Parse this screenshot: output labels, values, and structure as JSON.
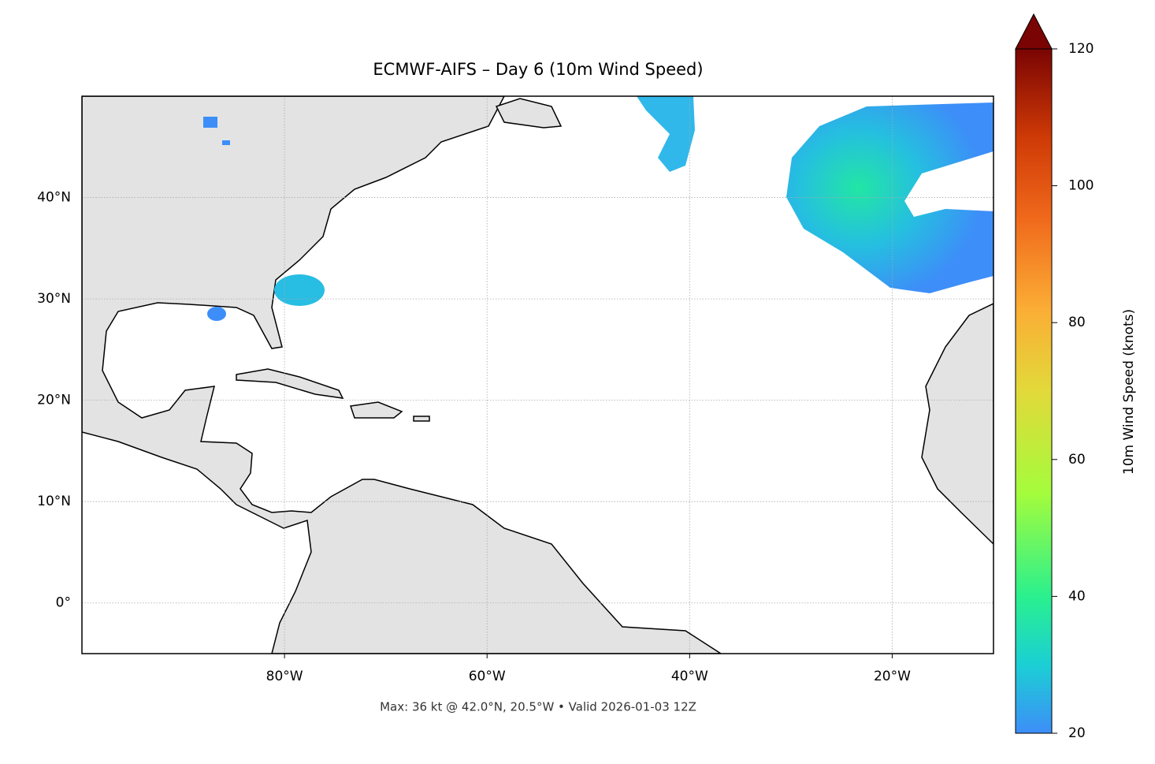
{
  "chart_data": {
    "type": "map",
    "title": "ECMWF-AIFS – Day 6 (10m Wind Speed)",
    "footnote": "Max: 36 kt @ 42.0°N, 20.5°W • Valid 2026-01-03 12Z",
    "xlim": [
      -100,
      -10
    ],
    "ylim": [
      -5,
      50
    ],
    "xticks": [
      {
        "value": -80,
        "label": "80°W"
      },
      {
        "value": -60,
        "label": "60°W"
      },
      {
        "value": -40,
        "label": "40°W"
      },
      {
        "value": -20,
        "label": "20°W"
      }
    ],
    "yticks": [
      {
        "value": 0,
        "label": "0°"
      },
      {
        "value": 10,
        "label": "10°N"
      },
      {
        "value": 20,
        "label": "20°N"
      },
      {
        "value": 30,
        "label": "30°N"
      },
      {
        "value": 40,
        "label": "40°N"
      }
    ],
    "grid": true,
    "colorbar": {
      "label": "10m Wind Speed (knots)",
      "lim": [
        20,
        120
      ],
      "ticks": [
        20,
        40,
        60,
        80,
        100,
        120
      ],
      "extend": "max"
    }
  }
}
